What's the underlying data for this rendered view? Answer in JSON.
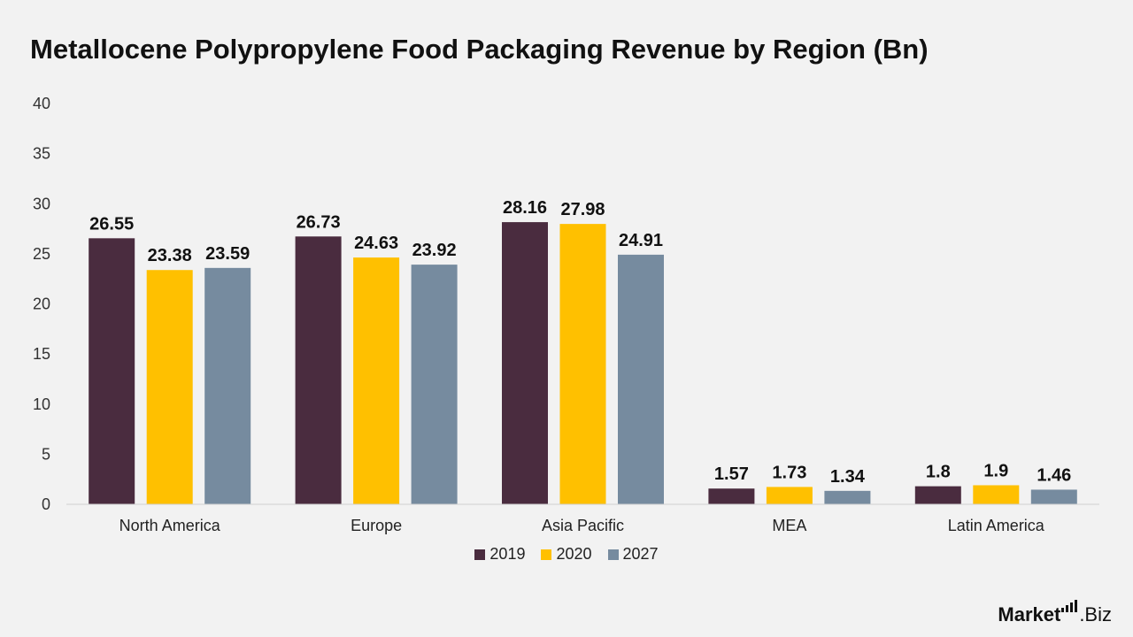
{
  "chart_data": {
    "type": "bar",
    "title": "Metallocene Polypropylene Food Packaging Revenue by Region (Bn)",
    "categories": [
      "North America",
      "Europe",
      "Asia Pacific",
      "MEA",
      "Latin America"
    ],
    "series": [
      {
        "name": "2019",
        "color": "#4a2c3f",
        "values": [
          26.55,
          26.73,
          28.16,
          1.57,
          1.8
        ]
      },
      {
        "name": "2020",
        "color": "#ffc000",
        "values": [
          23.38,
          24.63,
          27.98,
          1.73,
          1.9
        ]
      },
      {
        "name": "2027",
        "color": "#768b9f",
        "values": [
          23.59,
          23.92,
          24.91,
          1.34,
          1.46
        ]
      }
    ],
    "ylim": [
      0,
      40
    ],
    "yticks": [
      0,
      5,
      10,
      15,
      20,
      25,
      30,
      35,
      40
    ],
    "grid": false,
    "legend": "bottom-center",
    "data_labels": true
  },
  "branding": {
    "logo_strong": "Market",
    "logo_rest": ".Biz"
  }
}
